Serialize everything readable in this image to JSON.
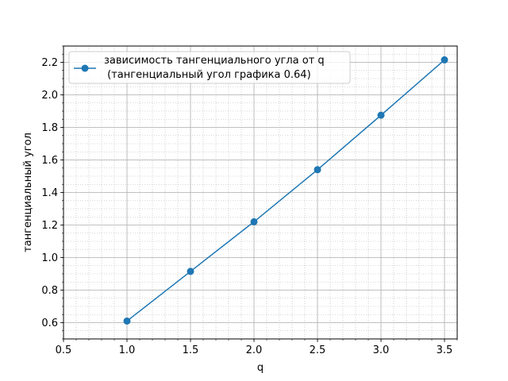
{
  "chart_data": {
    "type": "line",
    "title": "",
    "xlabel": "q",
    "ylabel": "тангенциальный угол",
    "xlim": [
      0.5,
      3.6
    ],
    "ylim": [
      0.5,
      2.3
    ],
    "xticks": [
      0.5,
      1.0,
      1.5,
      2.0,
      2.5,
      3.0,
      3.5
    ],
    "xtick_labels": [
      "0.5",
      "1.0",
      "1.5",
      "2.0",
      "2.5",
      "3.0",
      "3.5"
    ],
    "yticks": [
      0.6,
      0.8,
      1.0,
      1.2,
      1.4,
      1.6,
      1.8,
      2.0,
      2.2
    ],
    "ytick_labels": [
      "0.6",
      "0.8",
      "1.0",
      "1.2",
      "1.4",
      "1.6",
      "1.8",
      "2.0",
      "2.2"
    ],
    "grid": true,
    "minor_grid": true,
    "legend_position": "top-left",
    "series": [
      {
        "name": "зависимость тангенциального угла от q",
        "name_line2": " (тангенциальный угол графика 0.64)",
        "color": "#1f77b4",
        "marker": "circle",
        "x": [
          1.0,
          1.5,
          2.0,
          2.5,
          3.0,
          3.5
        ],
        "y": [
          0.61,
          0.915,
          1.22,
          1.54,
          1.875,
          2.215
        ]
      }
    ]
  }
}
